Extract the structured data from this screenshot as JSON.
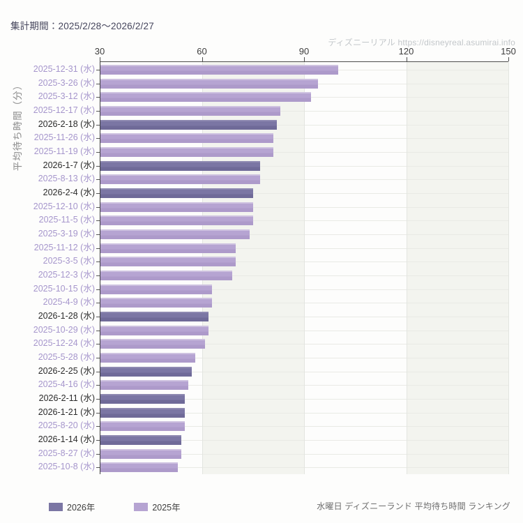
{
  "header": {
    "period_label": "集計期間：2025/2/28～2026/2/27"
  },
  "watermark": {
    "text": "ディズニーリアル https://disneyreal.asumirai.info"
  },
  "footer": {
    "caption": "水曜日 ディズニーランド 平均待ち時間 ランキング"
  },
  "legend": {
    "items": [
      {
        "label": "2026年",
        "year": "2026",
        "color": "#7b76a4"
      },
      {
        "label": "2025年",
        "year": "2025",
        "color": "#b6a4d2"
      }
    ]
  },
  "colors": {
    "bar_2025": "#b6a4d2",
    "bar_2026": "#7b76a4",
    "label_2025": "#a696cc",
    "label_2026": "#2b2b2b",
    "band_shade": "#f3f4ef",
    "axis": "#4c4c4c",
    "watermark": "#c3c7ca"
  },
  "chart_data": {
    "type": "bar",
    "orientation": "horizontal",
    "ylabel": "平均待ち時間（分）",
    "xlabel": "",
    "xlim": [
      30,
      150
    ],
    "x_ticks": [
      30,
      60,
      90,
      120,
      150
    ],
    "grid": "alternating vertical bands + faint row gridlines",
    "legend_position": "bottom-left",
    "unit": "分",
    "bars": [
      {
        "label": "2025-12-31 (水)",
        "value": 100,
        "year": "2025"
      },
      {
        "label": "2025-3-26 (水)",
        "value": 94,
        "year": "2025"
      },
      {
        "label": "2025-3-12 (水)",
        "value": 92,
        "year": "2025"
      },
      {
        "label": "2025-12-17 (水)",
        "value": 83,
        "year": "2025"
      },
      {
        "label": "2026-2-18 (水)",
        "value": 82,
        "year": "2026"
      },
      {
        "label": "2025-11-26 (水)",
        "value": 81,
        "year": "2025"
      },
      {
        "label": "2025-11-19 (水)",
        "value": 81,
        "year": "2025"
      },
      {
        "label": "2026-1-7 (水)",
        "value": 77,
        "year": "2026"
      },
      {
        "label": "2025-8-13 (水)",
        "value": 77,
        "year": "2025"
      },
      {
        "label": "2026-2-4 (水)",
        "value": 75,
        "year": "2026"
      },
      {
        "label": "2025-12-10 (水)",
        "value": 75,
        "year": "2025"
      },
      {
        "label": "2025-11-5 (水)",
        "value": 75,
        "year": "2025"
      },
      {
        "label": "2025-3-19 (水)",
        "value": 74,
        "year": "2025"
      },
      {
        "label": "2025-11-12 (水)",
        "value": 70,
        "year": "2025"
      },
      {
        "label": "2025-3-5 (水)",
        "value": 70,
        "year": "2025"
      },
      {
        "label": "2025-12-3 (水)",
        "value": 69,
        "year": "2025"
      },
      {
        "label": "2025-10-15 (水)",
        "value": 63,
        "year": "2025"
      },
      {
        "label": "2025-4-9 (水)",
        "value": 63,
        "year": "2025"
      },
      {
        "label": "2026-1-28 (水)",
        "value": 62,
        "year": "2026"
      },
      {
        "label": "2025-10-29 (水)",
        "value": 62,
        "year": "2025"
      },
      {
        "label": "2025-12-24 (水)",
        "value": 61,
        "year": "2025"
      },
      {
        "label": "2025-5-28 (水)",
        "value": 58,
        "year": "2025"
      },
      {
        "label": "2026-2-25 (水)",
        "value": 57,
        "year": "2026"
      },
      {
        "label": "2025-4-16 (水)",
        "value": 56,
        "year": "2025"
      },
      {
        "label": "2026-2-11 (水)",
        "value": 55,
        "year": "2026"
      },
      {
        "label": "2026-1-21 (水)",
        "value": 55,
        "year": "2026"
      },
      {
        "label": "2025-8-20 (水)",
        "value": 55,
        "year": "2025"
      },
      {
        "label": "2026-1-14 (水)",
        "value": 54,
        "year": "2026"
      },
      {
        "label": "2025-8-27 (水)",
        "value": 54,
        "year": "2025"
      },
      {
        "label": "2025-10-8 (水)",
        "value": 53,
        "year": "2025"
      }
    ]
  }
}
